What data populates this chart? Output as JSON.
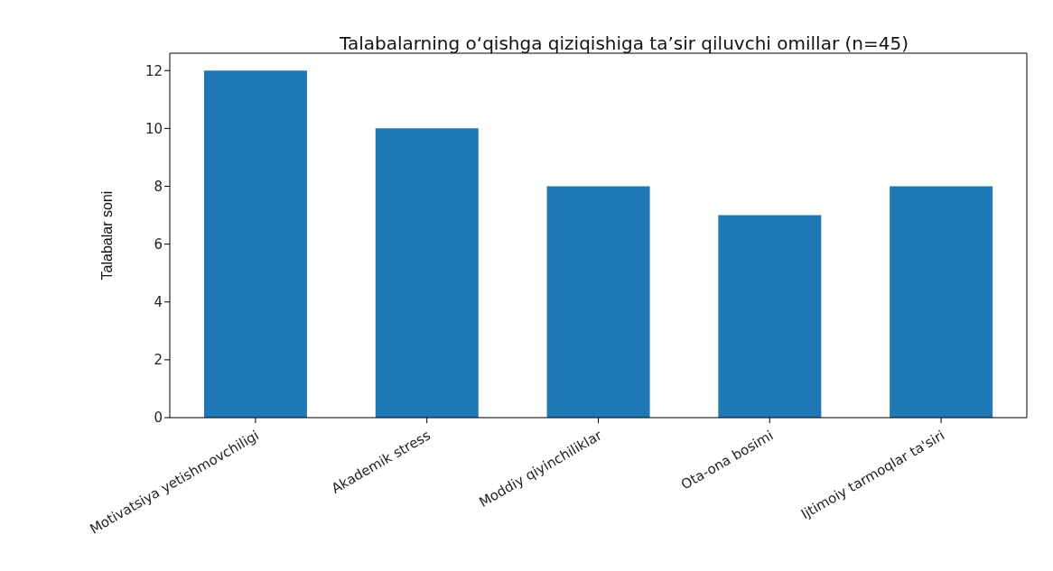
{
  "chart_data": {
    "type": "bar",
    "title": "Talabalarning o‘qishga qiziqishiga ta’sir qiluvchi omillar (n=45)",
    "ylabel": "Talabalar soni",
    "categories": [
      "Motivatsiya yetishmovchiligi",
      "Akademik stress",
      "Moddiy qiyinchiliklar",
      "Ota-ona bosimi",
      "Ijtimoiy tarmoqlar ta'siri"
    ],
    "values": [
      12,
      10,
      8,
      7,
      8
    ],
    "color": "#1f77b4",
    "ylim": [
      0,
      12.6
    ],
    "yticks": [
      0,
      2,
      4,
      6,
      8,
      10,
      12
    ],
    "grid": false,
    "legend": false
  }
}
